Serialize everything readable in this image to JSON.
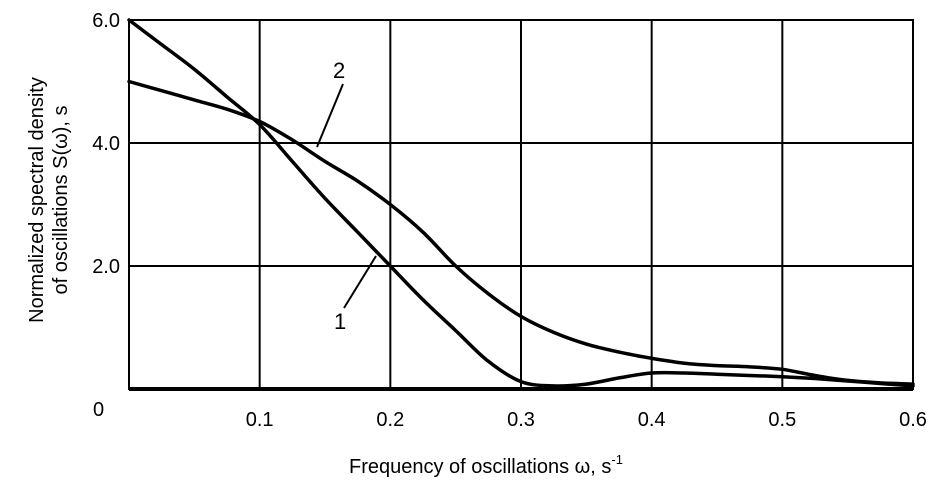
{
  "chart_data": {
    "type": "line",
    "xlabel": "Frequency of oscillations ω, s",
    "xlabel_sup": "-1",
    "ylabel_line1": "Normalized spectral density",
    "ylabel_line2": "of oscillations S(ω), s",
    "xlim": [
      0,
      0.6
    ],
    "ylim": [
      0,
      6.0
    ],
    "x_ticks": [
      {
        "value": 0.1,
        "label": "0.1"
      },
      {
        "value": 0.2,
        "label": "0.2"
      },
      {
        "value": 0.3,
        "label": "0.3"
      },
      {
        "value": 0.4,
        "label": "0.4"
      },
      {
        "value": 0.5,
        "label": "0.5"
      },
      {
        "value": 0.6,
        "label": "0.6"
      }
    ],
    "y_ticks": [
      {
        "value": 2.0,
        "label": "2.0"
      },
      {
        "value": 4.0,
        "label": "4.0"
      },
      {
        "value": 6.0,
        "label": "6.0"
      }
    ],
    "origin_label": "0",
    "grid": true,
    "series": [
      {
        "label": "1",
        "x": [
          0,
          0.025,
          0.05,
          0.075,
          0.1,
          0.125,
          0.15,
          0.175,
          0.2,
          0.225,
          0.25,
          0.275,
          0.3,
          0.325,
          0.35,
          0.375,
          0.4,
          0.425,
          0.45,
          0.475,
          0.5,
          0.525,
          0.55,
          0.575,
          0.6
        ],
        "y": [
          6.0,
          5.6,
          5.2,
          4.75,
          4.3,
          3.7,
          3.1,
          2.55,
          2.0,
          1.45,
          0.95,
          0.45,
          0.12,
          0.05,
          0.08,
          0.18,
          0.26,
          0.26,
          0.24,
          0.22,
          0.2,
          0.17,
          0.13,
          0.09,
          0.05
        ]
      },
      {
        "label": "2",
        "x": [
          0,
          0.025,
          0.05,
          0.075,
          0.1,
          0.125,
          0.15,
          0.175,
          0.2,
          0.225,
          0.25,
          0.275,
          0.3,
          0.325,
          0.35,
          0.375,
          0.4,
          0.425,
          0.45,
          0.475,
          0.5,
          0.525,
          0.55,
          0.575,
          0.6
        ],
        "y": [
          5.0,
          4.85,
          4.7,
          4.55,
          4.35,
          4.05,
          3.7,
          3.38,
          3.0,
          2.55,
          2.0,
          1.55,
          1.18,
          0.92,
          0.73,
          0.6,
          0.5,
          0.42,
          0.38,
          0.36,
          0.32,
          0.22,
          0.14,
          0.1,
          0.08
        ]
      }
    ],
    "annotations": [
      {
        "text": "1",
        "series": 0
      },
      {
        "text": "2",
        "series": 1
      }
    ]
  }
}
